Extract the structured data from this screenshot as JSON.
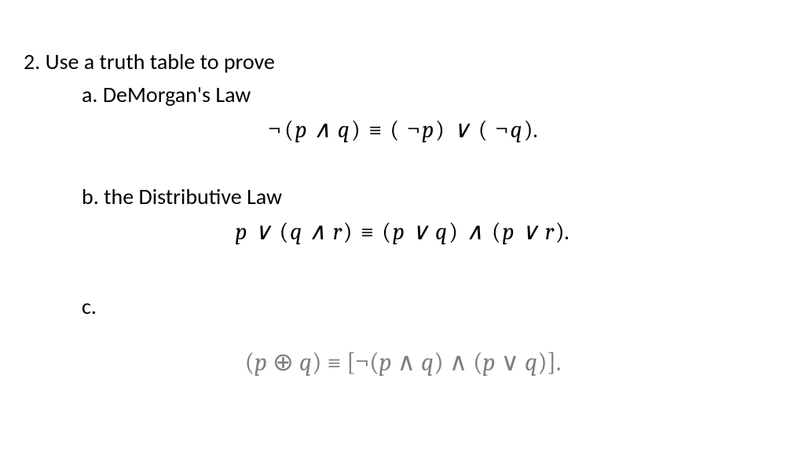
{
  "colors": {
    "text": "#000000",
    "background": "#ffffff",
    "faded": "#7f7f7f"
  },
  "typography": {
    "body_font": "Calibri",
    "body_size_pt": 21,
    "math_font": "Cambria Math",
    "math_size_pt": 22,
    "math_c_size_pt": 24
  },
  "question": {
    "number": "2.",
    "prompt": "Use a truth table to prove",
    "parts": {
      "a": {
        "label": "a.",
        "title": "DeMorgan's Law",
        "formula": {
          "lhs": "¬(p ∧ q)",
          "equiv": "≡",
          "rhs": "( ¬p) ∨ ( ¬q).",
          "vars": [
            "p",
            "q"
          ],
          "operators": [
            "¬",
            "∧",
            "≡",
            "∨"
          ]
        }
      },
      "b": {
        "label": "b.",
        "title": "the Distributive Law",
        "formula": {
          "lhs": "p ∨ (q ∧ r)",
          "equiv": "≡",
          "rhs": "(p ∨ q) ∧ (p ∨ r).",
          "vars": [
            "p",
            "q",
            "r"
          ],
          "operators": [
            "∨",
            "∧",
            "≡"
          ]
        }
      },
      "c": {
        "label": "c.",
        "title": "",
        "formula": {
          "lhs": "(p ⊕ q)",
          "equiv": "≡",
          "rhs": "[¬(p ∧ q) ∧ (p ∨ q)].",
          "vars": [
            "p",
            "q"
          ],
          "operators": [
            "⊕",
            "≡",
            "¬",
            "∧",
            "∨"
          ]
        }
      }
    }
  }
}
